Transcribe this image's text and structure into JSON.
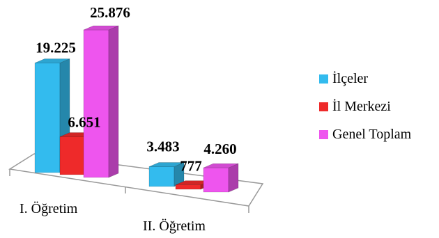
{
  "chart_data": {
    "type": "bar",
    "categories": [
      "I. Öğretim",
      "II. Öğretim"
    ],
    "series": [
      {
        "name": "İlçeler",
        "values": [
          19225,
          3483
        ],
        "labels": [
          "19.225",
          "3.483"
        ],
        "color": "#33BBEE"
      },
      {
        "name": "İl Merkezi",
        "values": [
          6651,
          777
        ],
        "labels": [
          "6.651",
          "777"
        ],
        "color": "#EE2A2A"
      },
      {
        "name": "Genel Toplam",
        "values": [
          25876,
          4260
        ],
        "labels": [
          "25.876",
          "4.260"
        ],
        "color": "#EE55EE"
      }
    ],
    "title": "",
    "xlabel": "",
    "ylabel": "",
    "ylim": [
      0,
      27000
    ],
    "style": "3d-clustered-column",
    "legend": "right"
  }
}
